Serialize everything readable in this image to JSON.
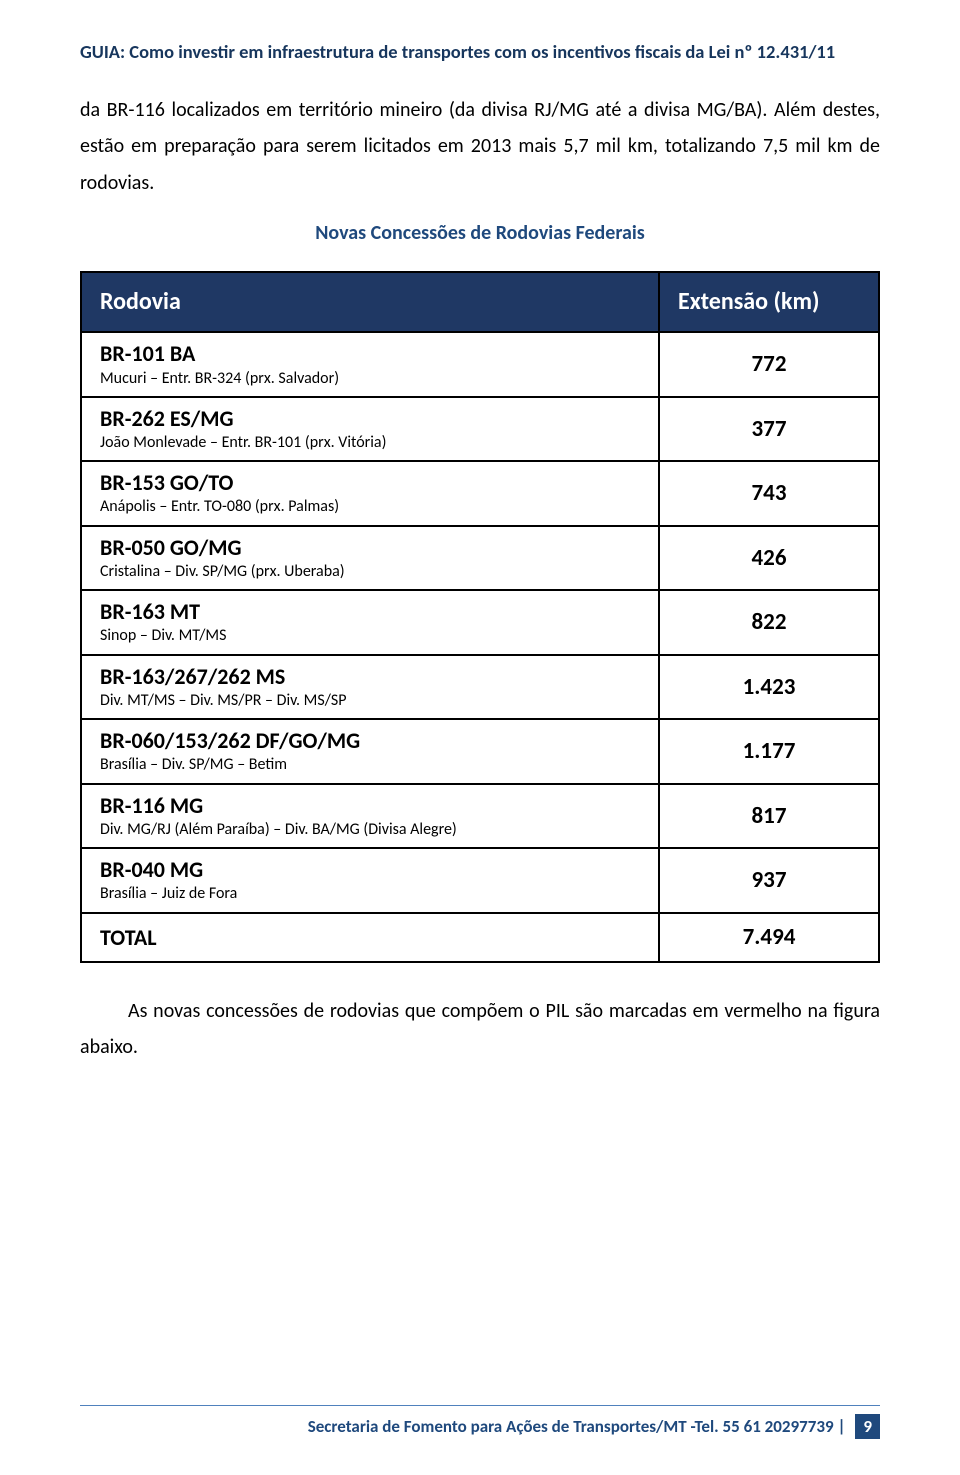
{
  "header": {
    "title": "GUIA: Como investir em infraestrutura de transportes com os incentivos fiscais da Lei nº 12.431/11"
  },
  "intro": {
    "paragraph": "da BR-116 localizados em território mineiro (da divisa RJ/MG até a divisa MG/BA). Além destes, estão em preparação para serem licitados em 2013 mais 5,7 mil km, totalizando 7,5 mil km de rodovias."
  },
  "section": {
    "subtitle": "Novas Concessões de Rodovias Federais"
  },
  "table": {
    "col1_header": "Rodovia",
    "col2_header": "Extensão (km)",
    "rows": [
      {
        "main": "BR-101 BA",
        "sub": "Mucuri – Entr. BR-324 (prx. Salvador)",
        "ext": "772"
      },
      {
        "main": "BR-262 ES/MG",
        "sub": "João Monlevade – Entr. BR-101 (prx. Vitória)",
        "ext": "377"
      },
      {
        "main": "BR-153 GO/TO",
        "sub": "Anápolis – Entr. TO-080 (prx. Palmas)",
        "ext": "743"
      },
      {
        "main": "BR-050 GO/MG",
        "sub": "Cristalina – Div. SP/MG (prx. Uberaba)",
        "ext": "426"
      },
      {
        "main": "BR-163 MT",
        "sub": "Sinop – Div. MT/MS",
        "ext": "822"
      },
      {
        "main": "BR-163/267/262 MS",
        "sub": "Div. MT/MS – Div. MS/PR – Div. MS/SP",
        "ext": "1.423"
      },
      {
        "main": "BR-060/153/262 DF/GO/MG",
        "sub": "Brasília – Div. SP/MG – Betim",
        "ext": "1.177"
      },
      {
        "main": "BR-116 MG",
        "sub": "Div. MG/RJ (Além Paraíba) – Div. BA/MG (Divisa Alegre)",
        "ext": "817"
      },
      {
        "main": "BR-040 MG",
        "sub": "Brasília – Juiz de Fora",
        "ext": "937"
      }
    ],
    "total_label": "TOTAL",
    "total_value": "7.494"
  },
  "after": {
    "paragraph": "As novas concessões de rodovias que compõem o PIL são marcadas em vermelho na figura abaixo."
  },
  "footer": {
    "text": "Secretaria de Fomento para Ações de Transportes/MT -Tel. 55 61 20297739 |",
    "page": "9"
  },
  "style": {
    "header_color": "#17365d",
    "accent_color": "#1f497d",
    "table_header_bg": "#1f3864",
    "table_header_fg": "#ffffff",
    "border_color": "#000000",
    "footer_rule_color": "#4f81bd",
    "body_font_size": 20,
    "table_main_font_size": 22,
    "table_sub_font_size": 16
  }
}
